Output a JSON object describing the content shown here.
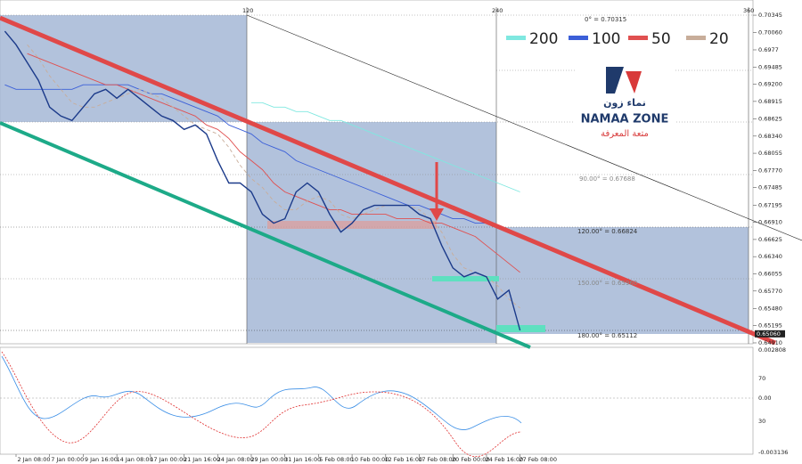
{
  "chart_data": {
    "type": "line",
    "categories": [
      null,
      "2 Jan 08:00",
      null,
      null,
      "7 Jan 00:00",
      null,
      null,
      "9 Jan 16:00",
      null,
      null,
      "14 Jan 08:00",
      null,
      null,
      "17 Jan 00:00",
      null,
      null,
      "21 Jan 16:00",
      null,
      null,
      "24 Jan 08:00",
      null,
      null,
      "29 Jan 00:00",
      null,
      null,
      "31 Jan 16:00",
      null,
      null,
      "5 Feb 08:00",
      null,
      null,
      "10 Feb 00:00",
      null,
      null,
      "12 Feb 16:00",
      null,
      null,
      "17 Feb 08:00",
      null,
      null,
      "20 Feb 00:00",
      null,
      null,
      "24 Feb 16:00",
      null,
      null,
      "27 Feb 08:00"
    ],
    "price": [
      0.70079,
      0.69856,
      0.6956,
      0.69264,
      0.6882,
      0.68672,
      0.68598,
      0.6882,
      0.69042,
      0.69116,
      0.68968,
      0.69116,
      0.68968,
      0.6882,
      0.68672,
      0.68598,
      0.6845,
      0.68524,
      0.68376,
      0.67932,
      0.67561,
      0.67561,
      0.67413,
      0.67043,
      0.66895,
      0.66969,
      0.67413,
      0.67561,
      0.67413,
      0.67043,
      0.66747,
      0.66895,
      0.67117,
      0.67191,
      0.67191,
      0.67191,
      0.67191,
      0.67043,
      0.66969,
      0.66525,
      0.66154,
      0.66006,
      0.6608,
      0.66006,
      0.65636,
      0.65784,
      0.65117
    ],
    "series": [
      {
        "name": "200",
        "color": "#7fe8e0",
        "values": [
          null,
          null,
          null,
          null,
          null,
          null,
          null,
          null,
          null,
          null,
          null,
          null,
          null,
          null,
          null,
          null,
          null,
          null,
          null,
          null,
          null,
          null,
          0.68894,
          0.68894,
          0.6882,
          0.6882,
          0.68746,
          0.68746,
          0.68672,
          0.68598,
          0.68598,
          0.68524,
          0.6845,
          0.68376,
          0.68302,
          0.68228,
          0.68154,
          0.6808,
          0.68006,
          0.67932,
          0.67857,
          0.67783,
          0.67709,
          0.67635,
          0.67561,
          0.67487,
          0.67413
        ]
      },
      {
        "name": "100",
        "color": "#3b5fd8",
        "values": [
          0.6919,
          0.69116,
          0.69116,
          0.69116,
          0.69116,
          0.69116,
          0.69116,
          0.6919,
          0.6919,
          0.6919,
          0.6919,
          0.6919,
          0.69116,
          0.69042,
          0.69042,
          0.68968,
          0.68894,
          0.6882,
          0.68746,
          0.68672,
          0.68524,
          0.6845,
          0.68376,
          0.68228,
          0.68154,
          0.6808,
          0.67932,
          0.67857,
          0.67783,
          0.67709,
          0.67635,
          0.67561,
          0.67487,
          0.67413,
          0.67339,
          0.67265,
          0.67191,
          0.67191,
          0.67117,
          0.67043,
          0.66969,
          0.66969,
          0.66895,
          0.66895,
          0.66821,
          null,
          null
        ]
      },
      {
        "name": "50",
        "color": "#e05050",
        "values": [
          null,
          null,
          0.69708,
          0.69634,
          0.6956,
          0.69486,
          0.69412,
          0.69338,
          0.69264,
          0.6919,
          0.6919,
          0.69116,
          0.69042,
          0.68968,
          0.68894,
          0.6882,
          0.68746,
          0.68672,
          0.68524,
          0.6845,
          0.68302,
          0.6808,
          0.67932,
          0.67783,
          0.67561,
          0.67413,
          0.67339,
          0.67265,
          0.67191,
          0.67117,
          0.67117,
          0.67043,
          0.67043,
          0.67043,
          0.67043,
          0.66969,
          0.66969,
          0.66969,
          0.66895,
          0.66895,
          0.66821,
          0.66747,
          0.66673,
          0.66525,
          0.66377,
          0.66228,
          0.6608
        ]
      },
      {
        "name": "20",
        "color": "#c8ad9a",
        "dashed": true,
        "values": [
          null,
          null,
          0.69856,
          0.69634,
          0.69338,
          0.69116,
          0.68894,
          0.6882,
          0.6882,
          0.68894,
          0.68968,
          0.69042,
          0.69116,
          0.69042,
          0.68968,
          0.6882,
          0.68672,
          0.68524,
          0.6845,
          0.68376,
          0.68154,
          0.67857,
          0.67635,
          0.67487,
          0.67265,
          0.67117,
          0.67117,
          0.67265,
          0.67339,
          0.67265,
          0.67043,
          0.66969,
          0.67043,
          0.67117,
          0.67191,
          0.67191,
          0.67191,
          0.67117,
          0.66969,
          0.66747,
          0.66377,
          0.66154,
          0.6608,
          0.66006,
          0.65858,
          0.65636,
          0.65488
        ]
      }
    ],
    "ylim": [
      0.64895,
      0.70597
    ],
    "yticks": [
      {
        "value": 0.70345,
        "label": "0.70345"
      },
      {
        "value": 0.7006,
        "label": "0.70060"
      },
      0.6977,
      0.69485,
      {
        "value": 0.692,
        "label": "0.69200"
      },
      0.68915,
      0.68625,
      {
        "value": 0.6834,
        "label": "0.68340"
      },
      0.68055,
      {
        "value": 0.6777,
        "label": "0.67770"
      },
      0.67485,
      0.67195,
      {
        "value": 0.6691,
        "label": "0.66910"
      },
      0.66625,
      {
        "value": 0.6634,
        "label": "0.66340"
      },
      0.66055,
      {
        "value": 0.6577,
        "label": "0.65770"
      },
      {
        "value": 0.6548,
        "label": "0.65480"
      },
      0.65195,
      {
        "value": 0.6491,
        "label": "0.64910"
      }
    ],
    "current_price": {
      "value": 0.6506,
      "label": "0.65060"
    },
    "annotations": [
      "0° = 0.70315",
      "90.00° = 0.67688",
      "120.00° = 0.66824",
      "150.00° = 0.65960",
      "180.00° = 0.65112"
    ],
    "period_marks": [
      "120",
      "240",
      "360"
    ],
    "oscillator_axis": [
      "0.002808",
      "70",
      "0.00",
      "30",
      "-0.003136"
    ],
    "logo": {
      "arabic": "نماء زون",
      "name": "NAMAA ZONE",
      "tagline": "متعة المعرفة"
    }
  }
}
